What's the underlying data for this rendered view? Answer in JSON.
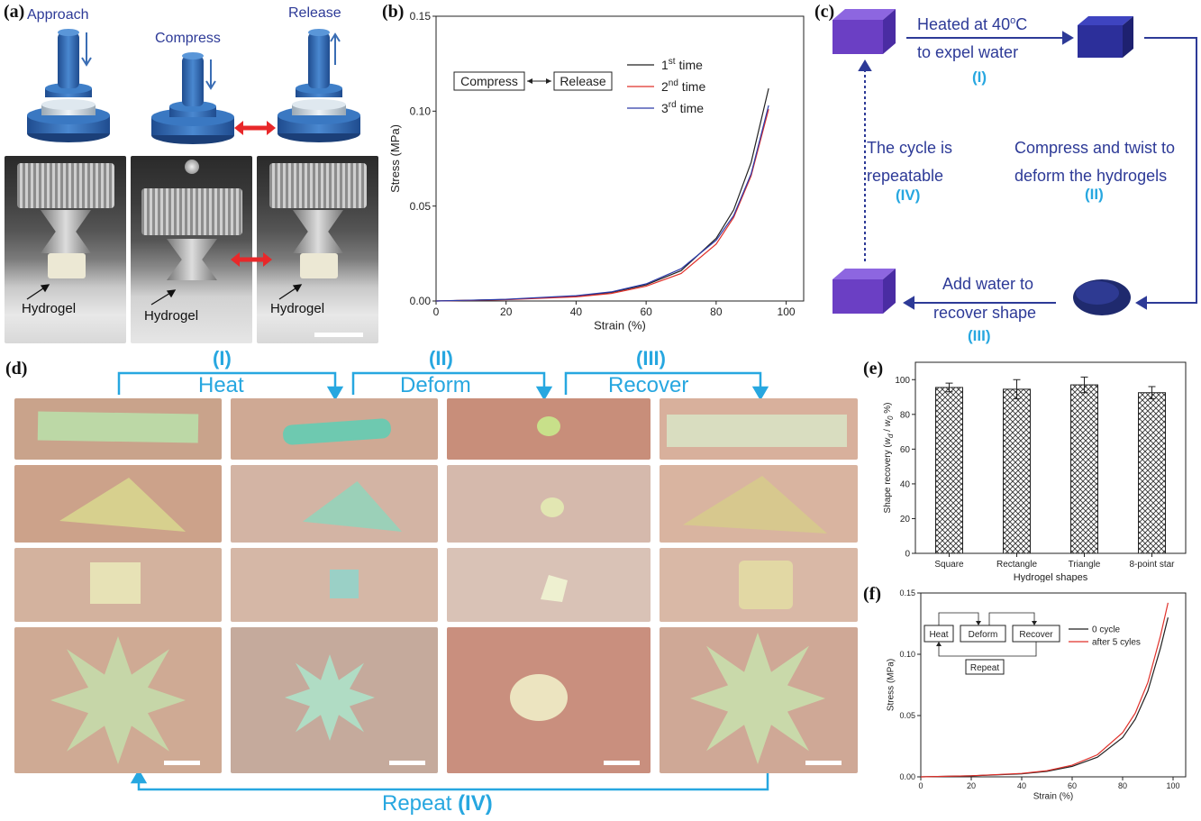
{
  "panels": {
    "a": "(a)",
    "b": "(b)",
    "c": "(c)",
    "d": "(d)",
    "e": "(e)",
    "f": "(f)"
  },
  "panel_a": {
    "approach": "Approach",
    "compress": "Compress",
    "release": "Release",
    "hydrogel_1": "Hydrogel",
    "hydrogel_2": "Hydrogel",
    "hydrogel_3": "Hydrogel"
  },
  "panel_c": {
    "step1_line1": "Heated at 40",
    "step1_sup": "o",
    "step1_unit": "C",
    "step1_line2": "to expel water",
    "step1_num": "(I)",
    "step2_line1": "Compress and twist to",
    "step2_line2": "deform the hydrogels",
    "step2_num": "(II)",
    "step3_line1": "Add water to",
    "step3_line2": "recover shape",
    "step3_num": "(III)",
    "step4_line1": "The cycle is",
    "step4_line2": "repeatable",
    "step4_num": "(IV)"
  },
  "panel_d": {
    "heat_num": "(I)",
    "heat": "Heat",
    "deform_num": "(II)",
    "deform": "Deform",
    "recover_num": "(III)",
    "recover": "Recover",
    "repeat": "Repeat ",
    "repeat_num": "(IV)"
  },
  "colors": {
    "cube": "#6b3fc4",
    "cube_dark": "#2c2f9a",
    "flow_blue": "#2d3a97",
    "cyan": "#27a7e0",
    "red_arrow": "#e8282a"
  },
  "chart_data": [
    {
      "id": "b",
      "type": "line",
      "xlabel": "Strain (%)",
      "ylabel": "Stress (MPa)",
      "xlim": [
        0,
        105
      ],
      "ylim": [
        0,
        0.15
      ],
      "xticks": [
        "0",
        "20",
        "40",
        "60",
        "80",
        "100"
      ],
      "yticks": [
        "0.00",
        "0.05",
        "0.10",
        "0.15"
      ],
      "annotation_left": "Compress",
      "annotation_right": "Release",
      "series": [
        {
          "name": "1st time",
          "label_base": "1",
          "label_sup": "st",
          "label_rest": " time",
          "color": "#222222",
          "x": [
            0,
            20,
            40,
            50,
            60,
            70,
            80,
            85,
            90,
            95
          ],
          "y": [
            0,
            0.0008,
            0.0025,
            0.0045,
            0.0085,
            0.016,
            0.033,
            0.048,
            0.073,
            0.112
          ]
        },
        {
          "name": "2nd time",
          "label_base": "2",
          "label_sup": "nd",
          "label_rest": " time",
          "color": "#e0302a",
          "x": [
            0,
            20,
            40,
            50,
            60,
            70,
            80,
            85,
            90,
            95
          ],
          "y": [
            0,
            0.0007,
            0.0022,
            0.004,
            0.0078,
            0.0145,
            0.03,
            0.044,
            0.066,
            0.101
          ]
        },
        {
          "name": "3rd time",
          "label_base": "3",
          "label_sup": "rd",
          "label_rest": " time",
          "color": "#2c3aa8",
          "x": [
            0,
            20,
            40,
            50,
            60,
            70,
            80,
            85,
            90,
            95
          ],
          "y": [
            0,
            0.0009,
            0.0028,
            0.0048,
            0.009,
            0.017,
            0.032,
            0.045,
            0.067,
            0.103
          ]
        }
      ]
    },
    {
      "id": "e",
      "type": "bar",
      "xlabel": "Hydrogel shapes",
      "ylabel_pre": "Shape recovery (",
      "ylabel_w1": "w",
      "ylabel_sub1": "d",
      "ylabel_mid": " / ",
      "ylabel_w2": "w",
      "ylabel_sub2": "0",
      "ylabel_post": " %)",
      "ylim": [
        0,
        110
      ],
      "yticks": [
        "0",
        "20",
        "40",
        "60",
        "80",
        "100"
      ],
      "categories": [
        "Square",
        "Rectangle",
        "Triangle",
        "8-point star"
      ],
      "values": [
        95.5,
        94.5,
        97,
        92.5
      ],
      "errors": [
        2.5,
        5.5,
        4.5,
        3.5
      ]
    },
    {
      "id": "f",
      "type": "line",
      "xlabel": "Strain (%)",
      "ylabel": "Stress (MPa)",
      "xlim": [
        0,
        105
      ],
      "ylim": [
        0,
        0.15
      ],
      "xticks": [
        "0",
        "20",
        "40",
        "60",
        "80",
        "100"
      ],
      "yticks": [
        "0.00",
        "0.05",
        "0.10",
        "0.15"
      ],
      "inset": {
        "heat": "Heat",
        "deform": "Deform",
        "recover": "Recover",
        "repeat": "Repeat"
      },
      "series": [
        {
          "name": "0 cycle",
          "color": "#222222",
          "x": [
            0,
            20,
            40,
            50,
            60,
            70,
            80,
            85,
            90,
            95,
            98
          ],
          "y": [
            0,
            0.0008,
            0.0025,
            0.0045,
            0.0085,
            0.016,
            0.032,
            0.047,
            0.07,
            0.105,
            0.13
          ]
        },
        {
          "name": "after 5 cyles",
          "color": "#e0302a",
          "x": [
            0,
            20,
            40,
            50,
            60,
            70,
            80,
            85,
            90,
            95,
            98
          ],
          "y": [
            0,
            0.0009,
            0.0028,
            0.005,
            0.0095,
            0.018,
            0.036,
            0.052,
            0.077,
            0.115,
            0.142
          ]
        }
      ]
    }
  ]
}
